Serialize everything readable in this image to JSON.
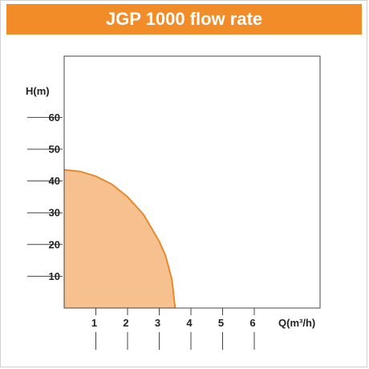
{
  "title": "JGP 1000 flow rate",
  "colors": {
    "accent": "#f28c28",
    "curve_fill": "#f7c08f",
    "curve_stroke": "#e58a2e",
    "axis": "#444444"
  },
  "chart_data": {
    "type": "area",
    "title": "JGP 1000 flow rate",
    "xlabel": "Q(m³/h)",
    "ylabel": "H(m)",
    "xlim": [
      0,
      6.8
    ],
    "ylim": [
      0,
      68
    ],
    "x_ticks": [
      1,
      2,
      3,
      4,
      5,
      6
    ],
    "y_ticks": [
      10,
      20,
      30,
      40,
      50,
      60
    ],
    "grid": false,
    "series": [
      {
        "x": [
          0,
          0.5,
          1,
          1.5,
          2,
          2.5,
          3,
          3.2,
          3.4,
          3.5
        ],
        "y": [
          43.5,
          43,
          41.5,
          39,
          35,
          29.5,
          21,
          16.5,
          9,
          0
        ]
      }
    ]
  }
}
